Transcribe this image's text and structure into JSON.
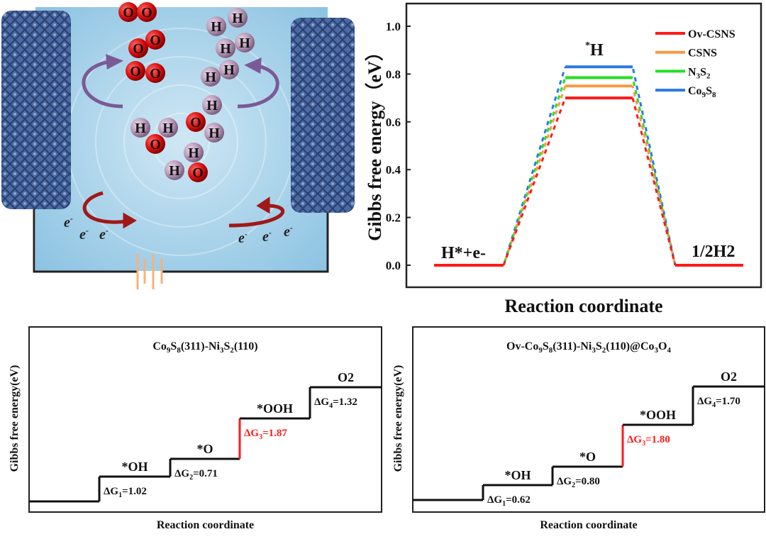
{
  "illustration": {
    "atoms_o": [
      "O",
      "O",
      "O",
      "O",
      "O",
      "O",
      "O",
      "O",
      "O"
    ],
    "atoms_h": [
      "H",
      "H",
      "H",
      "H",
      "H",
      "H",
      "H",
      "H",
      "H",
      "H",
      "H",
      "H"
    ],
    "electron": "e",
    "electron_sup": "-",
    "colors": {
      "water": "#a9d3ea",
      "electrode": "#4a6aa3",
      "oxygen": "#dd1111",
      "hydrogen": "#b89ab8",
      "arrow_purple": "#7a5a96",
      "arrow_red": "#a01818",
      "battery": "#f5b27a"
    }
  },
  "chart_data": [
    {
      "type": "line",
      "title": "",
      "xlabel": "Reaction coordinate",
      "ylabel": "Gibbs free energy（eV）",
      "ylim": [
        -0.1,
        1.05
      ],
      "yticks": [
        "0.0",
        "0.2",
        "0.4",
        "0.6",
        "0.8",
        "1.0"
      ],
      "ytick_values": [
        0,
        0.2,
        0.4,
        0.6,
        0.8,
        1.0
      ],
      "states": [
        "H*+e-",
        "*H",
        "1/2H2"
      ],
      "state_labels": {
        "start_main": "H",
        "start_sup": "*",
        "start_rest": "+e",
        "start_sup2": "-",
        "mid_sup": "*",
        "mid_main": "H",
        "end_main": "1/2H",
        "end_sub": "2"
      },
      "legend_position": "top-right",
      "series": [
        {
          "name": "Ov-CSNS",
          "label_main": "Ov-CSNS",
          "values": [
            0,
            0.7,
            0
          ],
          "color": "#ff1a1a"
        },
        {
          "name": "CSNS",
          "label_main": "CSNS",
          "values": [
            0,
            0.75,
            0
          ],
          "color": "#f59a45"
        },
        {
          "name": "N3S2",
          "label_main": "N",
          "label_sub1": "3",
          "label_mid": "S",
          "label_sub2": "2",
          "values": [
            0,
            0.785,
            0
          ],
          "color": "#22e022"
        },
        {
          "name": "Co9S8",
          "label_main": "Co",
          "label_sub1": "9",
          "label_mid": "S",
          "label_sub2": "8",
          "values": [
            0,
            0.83,
            0
          ],
          "color": "#2a7ae0"
        }
      ]
    },
    {
      "type": "line",
      "title_parts": [
        "Co",
        "9",
        "S",
        "8",
        "(311)-Ni",
        "3",
        "S",
        "2",
        "(110)"
      ],
      "xlabel": "Reaction coordinate",
      "ylabel": "Gibbs free energy(eV)",
      "states": [
        "",
        "*OH",
        "*O",
        "*OOH",
        "O2"
      ],
      "steps": [
        {
          "label": "ΔG",
          "sub": "1",
          "value": "=1.02",
          "dg": 1.02
        },
        {
          "label": "ΔG",
          "sub": "2",
          "value": "=0.71",
          "dg": 0.71
        },
        {
          "label": "ΔG",
          "sub": "3",
          "value": "=1.87",
          "dg": 1.87,
          "highlight": true
        },
        {
          "label": "ΔG",
          "sub": "4",
          "value": "=1.32",
          "dg": 1.32
        }
      ],
      "highlight_color": "#ff1a1a"
    },
    {
      "type": "line",
      "title_parts": [
        "Ov-Co",
        "9",
        "S",
        "8",
        "(311)-Ni",
        "3",
        "S",
        "2",
        "(110)@Co",
        "3",
        "O",
        "4",
        ""
      ],
      "xlabel": "Reaction coordinate",
      "ylabel": "Gibbs free energy(eV)",
      "states": [
        "",
        "*OH",
        "*O",
        "*OOH",
        "O2"
      ],
      "steps": [
        {
          "label": "ΔG",
          "sub": "1",
          "value": "=0.62",
          "dg": 0.62
        },
        {
          "label": "ΔG",
          "sub": "2",
          "value": "=0.80",
          "dg": 0.8
        },
        {
          "label": "ΔG",
          "sub": "3",
          "value": "=1.80",
          "dg": 1.8,
          "highlight": true
        },
        {
          "label": "ΔG",
          "sub": "4",
          "value": "=1.70",
          "dg": 1.7
        }
      ],
      "highlight_color": "#ff1a1a"
    }
  ]
}
